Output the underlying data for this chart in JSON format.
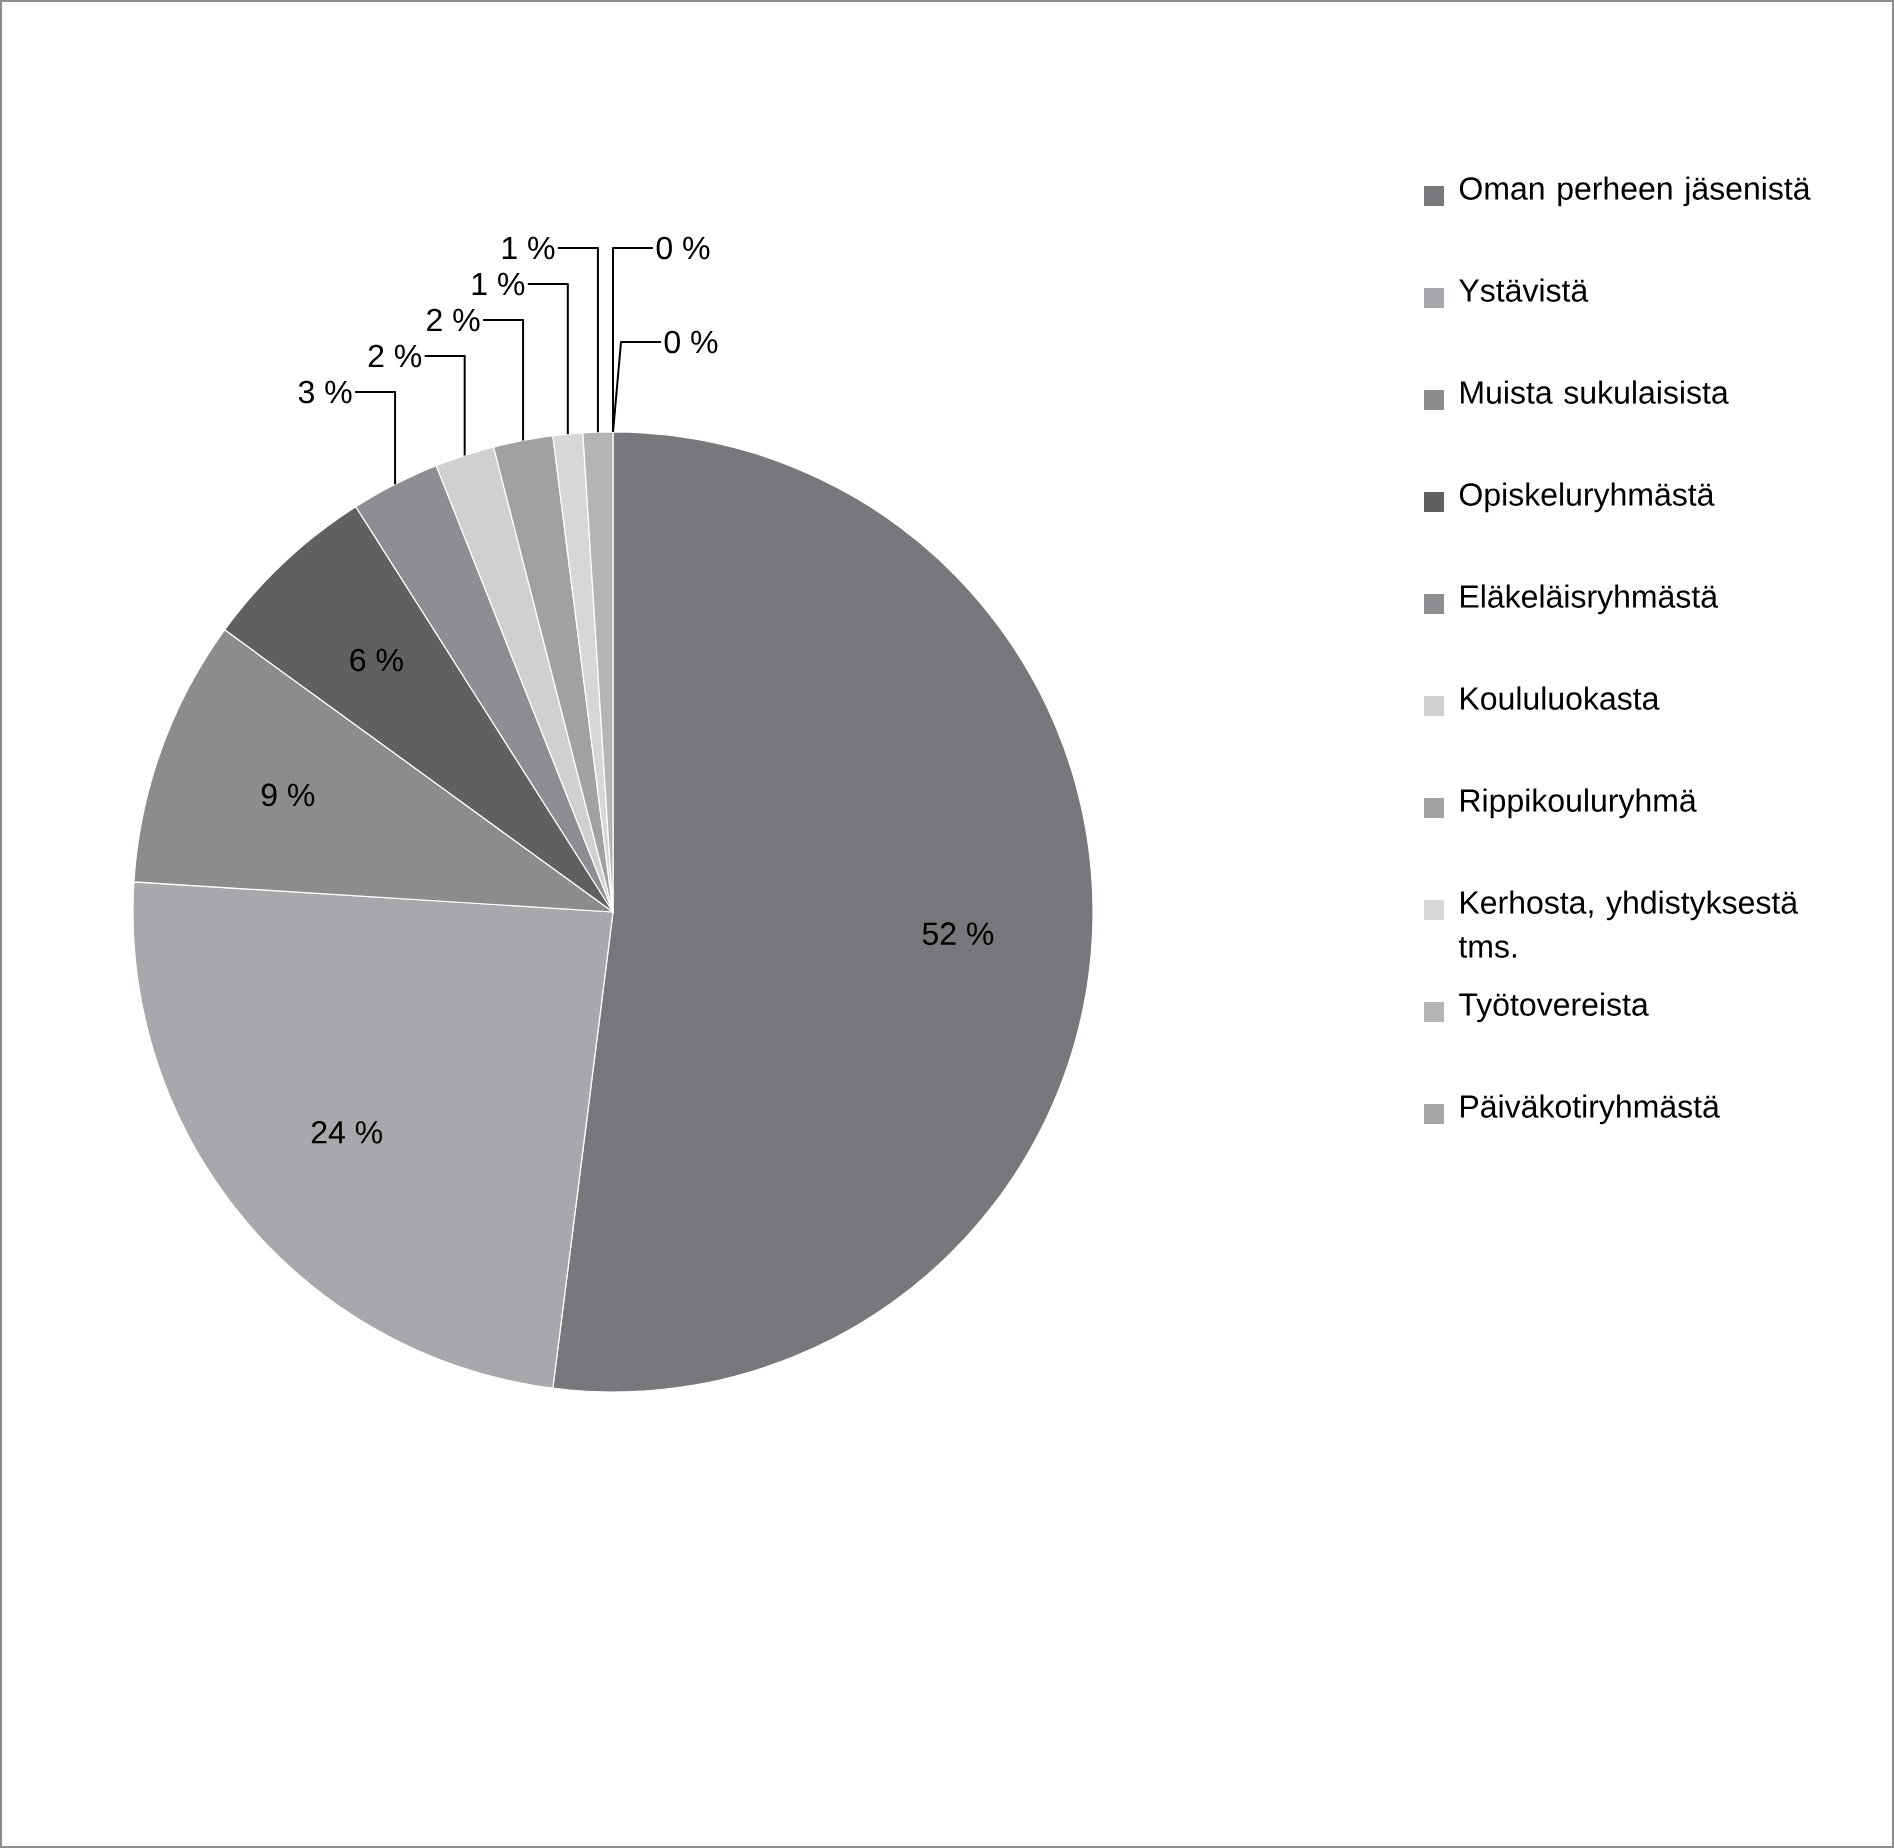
{
  "chart_data": {
    "type": "pie",
    "categories": [
      "Oman perheen jäsenistä",
      "Ystävistä",
      "Muista sukulaisista",
      "Opiskeluryhmästä",
      "Eläkeläisryhmästä",
      "Koululuokasta",
      "Rippikouluryhmä",
      "Kerhosta, yhdistyksestä tms.",
      "Työtovereista",
      "Päiväkotiryhmästä",
      null
    ],
    "values": [
      52,
      24,
      9,
      6,
      3,
      2,
      2,
      1,
      1,
      0,
      0
    ],
    "value_labels": [
      "52 %",
      "24 %",
      "9 %",
      "6 %",
      "3 %",
      "2 %",
      "2 %",
      "1 %",
      "1 %",
      "0 %",
      "0 %"
    ],
    "colors": [
      "#77787b",
      "#a7a8ab",
      "#8b8c8e",
      "#5f6062",
      "#8d8e91",
      "#cfd0d2",
      "#a0a1a3",
      "#d6d7d9",
      "#b3b4b6",
      "#a5a6a8",
      "#909193"
    ],
    "legend": "right"
  }
}
